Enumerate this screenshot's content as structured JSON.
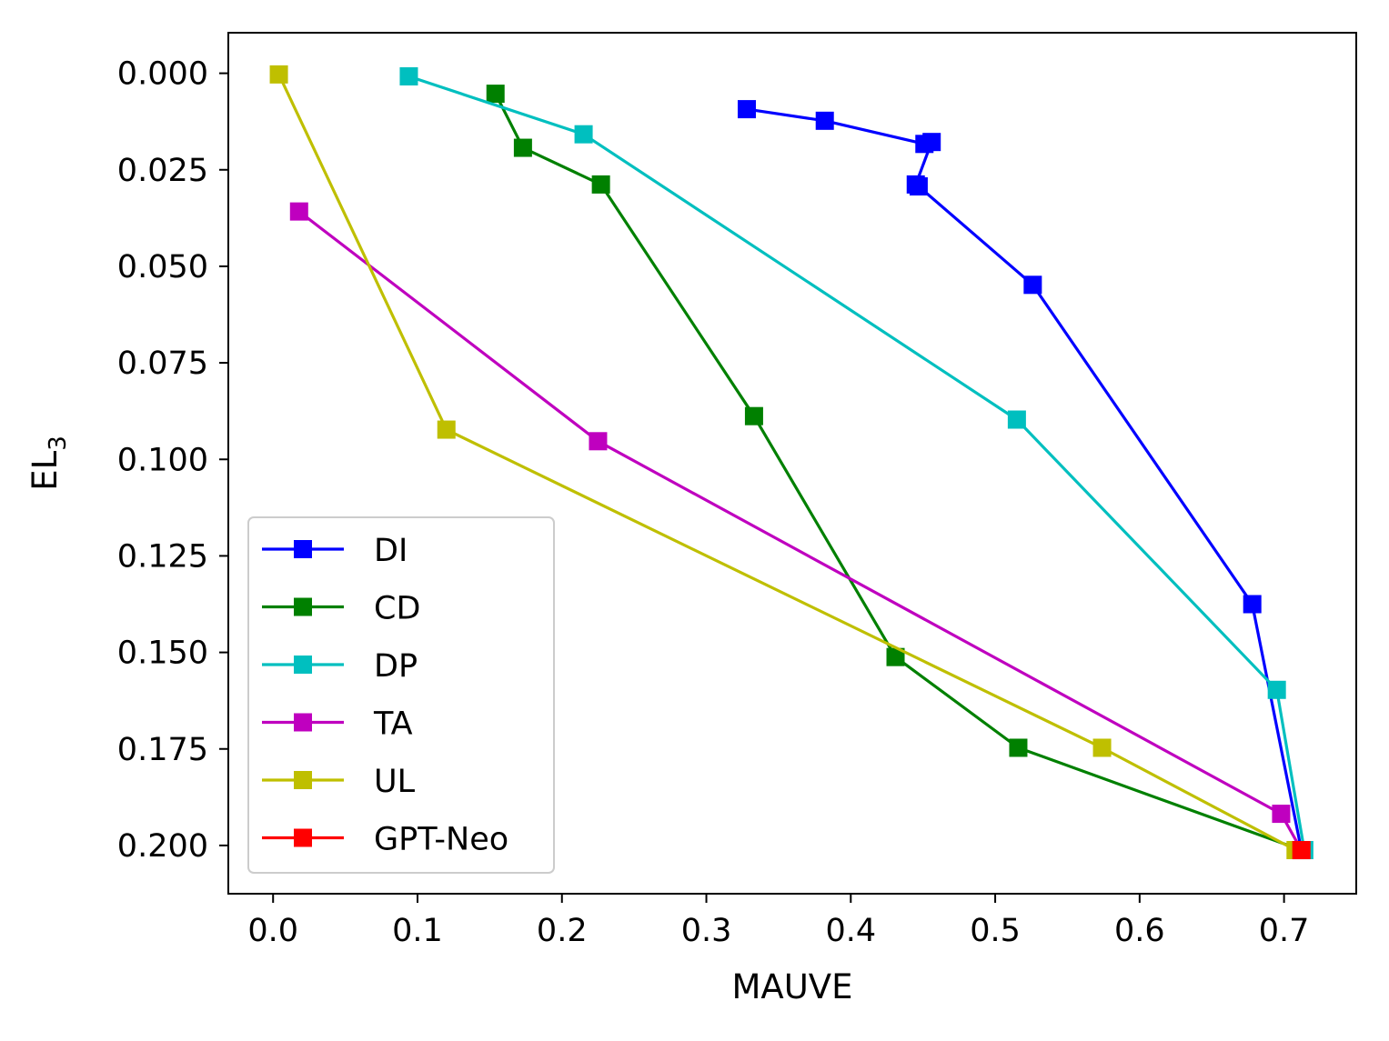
{
  "chart_data": {
    "type": "line",
    "xlabel": "MAUVE",
    "ylabel_main": "EL",
    "ylabel_sub": "3",
    "xlim": [
      -0.031,
      0.75
    ],
    "ylim": [
      0.2125,
      -0.0105
    ],
    "y_inverted": true,
    "x_ticks": [
      0.0,
      0.1,
      0.2,
      0.3,
      0.4,
      0.5,
      0.6,
      0.7
    ],
    "x_tick_labels": [
      "0.0",
      "0.1",
      "0.2",
      "0.3",
      "0.4",
      "0.5",
      "0.6",
      "0.7"
    ],
    "y_ticks": [
      0.0,
      0.025,
      0.05,
      0.075,
      0.1,
      0.125,
      0.15,
      0.175,
      0.2
    ],
    "y_tick_labels": [
      "0.000",
      "0.025",
      "0.050",
      "0.075",
      "0.100",
      "0.125",
      "0.150",
      "0.175",
      "0.200"
    ],
    "legend_position": "lower-left",
    "series": [
      {
        "name": "DI",
        "color": "#0000ff",
        "x": [
          0.328,
          0.382,
          0.451,
          0.456,
          0.445,
          0.447,
          0.526,
          0.678,
          0.712
        ],
        "y": [
          0.0093,
          0.0123,
          0.0183,
          0.0178,
          0.0288,
          0.0293,
          0.0548,
          0.1375,
          0.2012
        ]
      },
      {
        "name": "CD",
        "color": "#008000",
        "x": [
          0.154,
          0.173,
          0.227,
          0.333,
          0.431,
          0.516,
          0.712
        ],
        "y": [
          0.0053,
          0.0193,
          0.0288,
          0.0888,
          0.1512,
          0.1747,
          0.2012
        ]
      },
      {
        "name": "DP",
        "color": "#00bfbf",
        "x": [
          0.094,
          0.215,
          0.515,
          0.695,
          0.714
        ],
        "y": [
          0.0008,
          0.0158,
          0.0897,
          0.1597,
          0.2012
        ]
      },
      {
        "name": "TA",
        "color": "#bf00bf",
        "x": [
          0.018,
          0.225,
          0.698,
          0.712
        ],
        "y": [
          0.0358,
          0.0953,
          0.1918,
          0.2012
        ]
      },
      {
        "name": "UL",
        "color": "#bfbf00",
        "x": [
          0.004,
          0.12,
          0.574,
          0.708,
          0.712
        ],
        "y": [
          0.0003,
          0.0923,
          0.1747,
          0.2012,
          0.2012
        ]
      },
      {
        "name": "GPT-Neo",
        "color": "#ff0000",
        "x": [
          0.712
        ],
        "y": [
          0.2012
        ]
      }
    ]
  }
}
